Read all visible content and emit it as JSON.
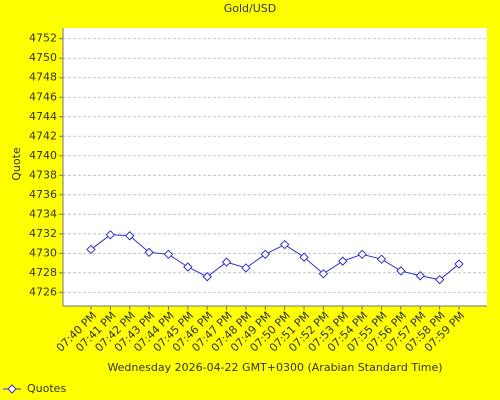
{
  "chart_data": {
    "type": "line",
    "title": "Gold/USD",
    "x_label": "Wednesday 2026-04-22 GMT+0300 (Arabian Standard Time)",
    "y_label": "Quote",
    "categories": [
      "07:40 PM",
      "07:41 PM",
      "07:42 PM",
      "07:43 PM",
      "07:44 PM",
      "07:45 PM",
      "07:46 PM",
      "07:47 PM",
      "07:48 PM",
      "07:49 PM",
      "07:50 PM",
      "07:51 PM",
      "07:52 PM",
      "07:53 PM",
      "07:54 PM",
      "07:55 PM",
      "07:56 PM",
      "07:57 PM",
      "07:58 PM",
      "07:59 PM"
    ],
    "series": [
      {
        "name": "Quotes",
        "color": "#3333cc",
        "values": [
          4730.4,
          4731.9,
          4731.8,
          4730.1,
          4729.9,
          4728.6,
          4727.6,
          4729.1,
          4728.5,
          4729.9,
          4730.9,
          4729.6,
          4727.9,
          4729.2,
          4729.9,
          4729.4,
          4728.2,
          4727.7,
          4727.3,
          4728.9
        ]
      }
    ],
    "ylim": [
      4724.6,
      4753.1
    ],
    "yticks": [
      4726,
      4728,
      4730,
      4732,
      4734,
      4736,
      4738,
      4740,
      4742,
      4744,
      4746,
      4748,
      4750,
      4752
    ],
    "grid": true,
    "legend": "bottom-left"
  }
}
